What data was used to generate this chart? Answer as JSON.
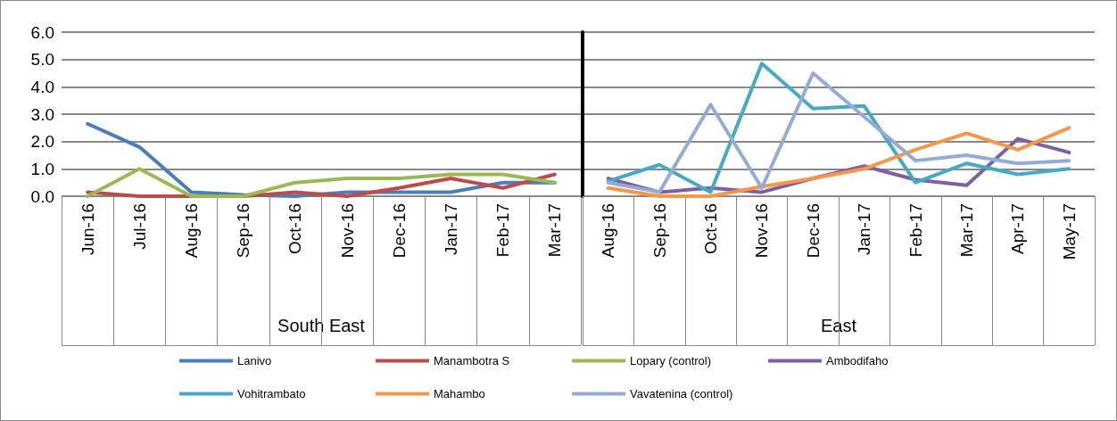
{
  "chart_data": [
    {
      "type": "line",
      "xlabel": "South East",
      "categories": [
        "Jun-16",
        "Jul-16",
        "Aug-16",
        "Sep-16",
        "Oct-16",
        "Nov-16",
        "Dec-16",
        "Jan-17",
        "Feb-17",
        "Mar-17"
      ],
      "series": [
        {
          "name": "Lanivo",
          "color": "#4a7ebb",
          "values": [
            2.65,
            1.8,
            0.15,
            0.05,
            0,
            0.15,
            0.15,
            0.15,
            0.5,
            0.5
          ]
        },
        {
          "name": "Manambotra S",
          "color": "#be4b48",
          "values": [
            0.15,
            0,
            0,
            0,
            0.15,
            0,
            0.3,
            0.65,
            0.3,
            0.8
          ]
        },
        {
          "name": "Lopary (control)",
          "color": "#98b954",
          "values": [
            0,
            1.0,
            0,
            0,
            0.5,
            0.65,
            0.65,
            0.8,
            0.8,
            0.5
          ]
        }
      ],
      "ylim": [
        0,
        6
      ],
      "yticks": [
        {
          "value": 0,
          "label": "0.0"
        },
        {
          "value": 1,
          "label": "1.0"
        },
        {
          "value": 2,
          "label": "2.0"
        },
        {
          "value": 3,
          "label": "3.0"
        },
        {
          "value": 4,
          "label": "4.0"
        },
        {
          "value": 5,
          "label": "5.0"
        },
        {
          "value": 6,
          "label": "6.0"
        }
      ],
      "grid": "y",
      "legend": "bottom",
      "marker": "none",
      "line_style": "solid"
    },
    {
      "type": "line",
      "xlabel": "East",
      "categories": [
        "Aug-16",
        "Sep-16",
        "Oct-16",
        "Nov-16",
        "Dec-16",
        "Jan-17",
        "Feb-17",
        "Mar-17",
        "Apr-17",
        "May-17"
      ],
      "series": [
        {
          "name": "Ambodifaho",
          "color": "#7d60a0",
          "values": [
            0.65,
            0.15,
            0.3,
            0.15,
            0.65,
            1.1,
            0.6,
            0.4,
            2.1,
            1.6
          ]
        },
        {
          "name": "Vohitrambato",
          "color": "#46aac5",
          "values": [
            0.55,
            1.15,
            0.15,
            4.85,
            3.2,
            3.3,
            0.5,
            1.2,
            0.8,
            1.0
          ]
        },
        {
          "name": "Mahambo",
          "color": "#f79646",
          "values": [
            0.3,
            0,
            0,
            0.35,
            0.65,
            1.0,
            1.7,
            2.3,
            1.7,
            2.5
          ]
        },
        {
          "name": "Vavatenina (control)",
          "color": "#94abd6",
          "values": [
            0.5,
            0.15,
            3.35,
            0.3,
            4.5,
            2.9,
            1.3,
            1.5,
            1.2,
            1.3
          ]
        }
      ],
      "ylim": [
        0,
        6
      ],
      "yticks": [
        0,
        1,
        2,
        3,
        4,
        5,
        6
      ],
      "tick_labels": "x",
      "grid": "y",
      "legend": "bottom",
      "marker": "none",
      "line_style": "solid"
    }
  ]
}
